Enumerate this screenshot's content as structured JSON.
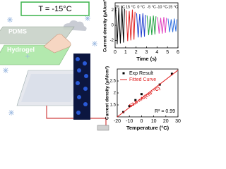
{
  "illustration": {
    "temperature": "T = -15°C",
    "layer_top": "PDMS",
    "layer_bottom": "Hydrogel"
  },
  "chart_data": [
    {
      "type": "line",
      "xlabel": "Time (s)",
      "ylabel": "Current density (μA/cm²)",
      "xlim": [
        0,
        6
      ],
      "xticks": [
        0,
        1,
        2,
        3,
        4,
        5,
        6
      ],
      "ylim": [
        -3,
        3
      ],
      "yticks": [
        -2,
        0,
        2
      ],
      "series": [
        {
          "name": "25 °C",
          "color": "#000000",
          "x": [
            0.05,
            0.2,
            0.35,
            0.5,
            0.65,
            0.8,
            0.9
          ],
          "values": [
            2.4,
            -2.5,
            2.3,
            -2.4,
            2.5,
            -2.3,
            2.2
          ]
        },
        {
          "name": "15 °C",
          "color": "#e02020",
          "x": [
            1.05,
            1.2,
            1.35,
            1.5,
            1.65,
            1.8,
            1.9
          ],
          "values": [
            2.0,
            -2.1,
            1.9,
            -2.0,
            2.1,
            -1.9,
            1.8
          ]
        },
        {
          "name": "0 °C",
          "color": "#1f3fd0",
          "x": [
            2.05,
            2.2,
            2.35,
            2.5,
            2.65,
            2.8,
            2.9
          ],
          "values": [
            1.6,
            -1.6,
            1.5,
            -1.6,
            1.6,
            -1.5,
            1.4
          ]
        },
        {
          "name": "-5 °C",
          "color": "#20a040",
          "x": [
            3.05,
            3.2,
            3.35,
            3.5,
            3.65,
            3.8,
            3.9
          ],
          "values": [
            1.3,
            -1.3,
            1.2,
            -1.3,
            1.3,
            -1.2,
            1.2
          ]
        },
        {
          "name": "-10 °C",
          "color": "#e040c0",
          "x": [
            4.05,
            4.2,
            4.35,
            4.5,
            4.65,
            4.8,
            4.9
          ],
          "values": [
            1.1,
            -1.1,
            1.0,
            -1.1,
            1.1,
            -1.0,
            1.0
          ]
        },
        {
          "name": "-15 °C",
          "color": "#3070e0",
          "x": [
            5.05,
            5.2,
            5.35,
            5.5,
            5.65,
            5.8,
            5.9
          ],
          "values": [
            0.9,
            -0.9,
            0.8,
            -0.9,
            0.9,
            -0.8,
            0.8
          ]
        }
      ]
    },
    {
      "type": "scatter",
      "xlabel": "Temperature (°C)",
      "ylabel": "Current density (μA/cm²)",
      "xlim": [
        -20,
        30
      ],
      "xticks": [
        -20,
        -10,
        0,
        10,
        20,
        30
      ],
      "ylim": [
        1,
        3
      ],
      "yticks": [
        1.5,
        2.0,
        2.5
      ],
      "annotations": [
        "53.8 nA/(cm² °C)",
        "R² = 0.99"
      ],
      "series": [
        {
          "name": "Exp Result",
          "color": "#000000",
          "style": "markers",
          "x": [
            -15,
            -10,
            -5,
            0,
            15,
            25
          ],
          "values": [
            1.2,
            1.45,
            1.7,
            1.95,
            2.35,
            2.8
          ]
        },
        {
          "name": "Fitted Curve",
          "color": "#e02020",
          "style": "line",
          "x": [
            -20,
            30
          ],
          "values": [
            1.0,
            2.95
          ]
        }
      ]
    }
  ]
}
